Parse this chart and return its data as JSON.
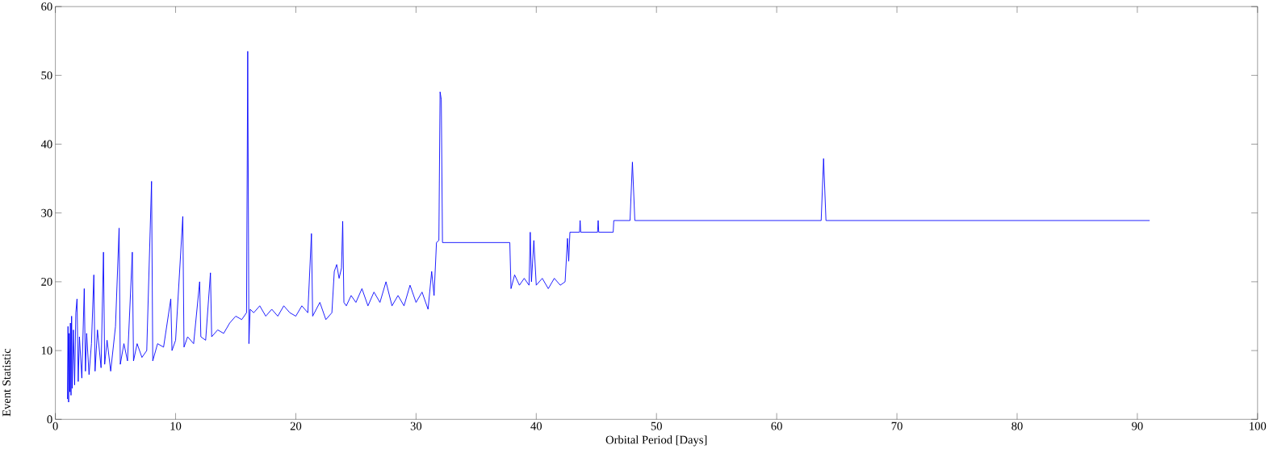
{
  "chart_data": {
    "type": "line",
    "xlabel": "Orbital Period [Days]",
    "ylabel": "Event Statistic",
    "xlim": [
      0,
      100
    ],
    "ylim": [
      0,
      60
    ],
    "xticks": [
      0,
      10,
      20,
      30,
      40,
      50,
      60,
      70,
      80,
      90,
      100
    ],
    "yticks": [
      0,
      10,
      20,
      30,
      40,
      50,
      60
    ],
    "grid": false,
    "series": [
      {
        "color": "#0000ff",
        "x": [
          1.0,
          1.05,
          1.1,
          1.15,
          1.2,
          1.25,
          1.3,
          1.35,
          1.4,
          1.5,
          1.6,
          1.7,
          1.8,
          1.9,
          2.0,
          2.2,
          2.4,
          2.5,
          2.6,
          2.8,
          3.0,
          3.2,
          3.3,
          3.5,
          3.8,
          4.0,
          4.1,
          4.3,
          4.6,
          5.0,
          5.3,
          5.4,
          5.7,
          6.0,
          6.4,
          6.5,
          6.8,
          7.2,
          7.6,
          8.0,
          8.1,
          8.5,
          9.0,
          9.6,
          9.7,
          10.0,
          10.6,
          10.7,
          11.0,
          11.5,
          12.0,
          12.1,
          12.5,
          12.9,
          13.0,
          13.5,
          14.0,
          14.5,
          15.0,
          15.5,
          15.9,
          16.0,
          16.1,
          16.2,
          16.5,
          17.0,
          17.5,
          18.0,
          18.5,
          19.0,
          19.5,
          20.0,
          20.5,
          21.0,
          21.3,
          21.4,
          22.0,
          22.5,
          23.0,
          23.2,
          23.4,
          23.6,
          23.8,
          23.9,
          24.0,
          24.2,
          24.6,
          25.0,
          25.5,
          26.0,
          26.5,
          27.0,
          27.5,
          28.0,
          28.5,
          29.0,
          29.5,
          30.0,
          30.5,
          31.0,
          31.3,
          31.5,
          31.7,
          31.9,
          32.0,
          32.1,
          32.2,
          35.0,
          37.8,
          37.9,
          38.2,
          38.6,
          39.0,
          39.4,
          39.5,
          39.6,
          39.8,
          40.0,
          40.5,
          41.0,
          41.5,
          42.0,
          42.4,
          42.6,
          42.7,
          42.8,
          43.6,
          43.65,
          43.7,
          45.1,
          45.15,
          45.2,
          46.4,
          46.45,
          47.8,
          48.0,
          48.2,
          63.7,
          63.9,
          64.1,
          91.0
        ],
        "values": [
          3.0,
          13.5,
          2.5,
          12.5,
          4.0,
          14.0,
          3.5,
          15.0,
          4.5,
          13.0,
          5.0,
          15.5,
          17.5,
          5.5,
          12.0,
          6.0,
          19.0,
          7.0,
          12.5,
          6.5,
          11.0,
          21.0,
          7.0,
          13.0,
          7.5,
          24.3,
          8.0,
          11.5,
          7.0,
          13.5,
          27.8,
          8.0,
          11.0,
          8.5,
          24.3,
          8.5,
          11.0,
          9.0,
          10.0,
          34.6,
          8.5,
          11.0,
          10.5,
          17.5,
          10.0,
          11.5,
          29.5,
          10.5,
          12.0,
          11.0,
          20.0,
          12.0,
          11.5,
          21.3,
          12.0,
          13.0,
          12.5,
          14.0,
          15.0,
          14.5,
          15.5,
          53.5,
          11.0,
          16.0,
          15.5,
          16.5,
          15.0,
          16.0,
          15.0,
          16.5,
          15.5,
          15.0,
          16.5,
          15.5,
          27.0,
          15.0,
          17.0,
          14.5,
          15.5,
          21.5,
          22.5,
          20.5,
          22.0,
          28.8,
          17.0,
          16.5,
          18.0,
          17.0,
          19.0,
          16.5,
          18.5,
          17.0,
          20.0,
          16.5,
          18.0,
          16.5,
          19.5,
          17.0,
          18.5,
          16.0,
          21.5,
          18.0,
          25.7,
          26.0,
          47.6,
          46.5,
          25.7,
          25.7,
          25.7,
          19.0,
          21.0,
          19.5,
          20.5,
          19.5,
          27.2,
          20.0,
          26.0,
          19.5,
          20.5,
          19.0,
          20.5,
          19.5,
          20.0,
          26.3,
          23.0,
          27.2,
          27.2,
          28.9,
          27.2,
          27.2,
          28.9,
          27.2,
          27.2,
          28.9,
          28.9,
          37.4,
          28.9,
          28.9,
          37.9,
          28.9,
          28.9
        ]
      }
    ]
  }
}
